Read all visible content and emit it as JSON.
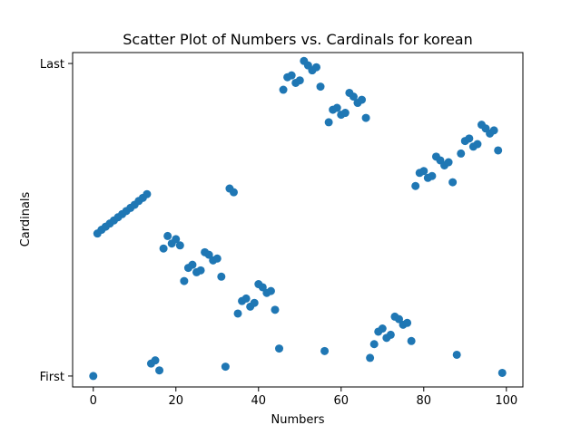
{
  "chart_data": {
    "type": "scatter",
    "title": "Scatter Plot of Numbers vs. Cardinals for korean",
    "xlabel": "Numbers",
    "ylabel": "Cardinals",
    "xlim": [
      -5,
      104
    ],
    "ylim": [
      -0.035,
      1.035
    ],
    "x_ticks": [
      0,
      20,
      40,
      60,
      80,
      100
    ],
    "y_ticks": [
      {
        "value": 0,
        "label": "First"
      },
      {
        "value": 1,
        "label": "Last"
      }
    ],
    "grid": false,
    "legend": "none",
    "marker_color": "#1f77b4",
    "series": [
      {
        "x": [
          0,
          1,
          2,
          3,
          4,
          5,
          6,
          7,
          8,
          9,
          10,
          11,
          12,
          13,
          14,
          15,
          16,
          17,
          18,
          19,
          20,
          21,
          22,
          23,
          24,
          25,
          26,
          27,
          28,
          29,
          30,
          31,
          32,
          33,
          34,
          35,
          36,
          37,
          38,
          39,
          40,
          41,
          42,
          43,
          44,
          45,
          46,
          47,
          48,
          49,
          50,
          51,
          52,
          53,
          54,
          55,
          56,
          57,
          58,
          59,
          60,
          61,
          62,
          63,
          64,
          65,
          66,
          67,
          68,
          69,
          70,
          71,
          72,
          73,
          74,
          75,
          76,
          77,
          78,
          79,
          80,
          81,
          82,
          83,
          84,
          85,
          86,
          87,
          88,
          89,
          90,
          91,
          92,
          93,
          94,
          95,
          96,
          97,
          98,
          99
        ],
        "y": [
          0.0,
          0.456,
          0.468,
          0.478,
          0.488,
          0.498,
          0.508,
          0.518,
          0.528,
          0.538,
          0.548,
          0.56,
          0.57,
          0.582,
          0.04,
          0.05,
          0.018,
          0.408,
          0.448,
          0.424,
          0.438,
          0.418,
          0.304,
          0.346,
          0.356,
          0.332,
          0.338,
          0.396,
          0.388,
          0.37,
          0.376,
          0.318,
          0.03,
          0.6,
          0.588,
          0.2,
          0.24,
          0.248,
          0.222,
          0.234,
          0.294,
          0.284,
          0.266,
          0.272,
          0.212,
          0.088,
          0.916,
          0.956,
          0.962,
          0.938,
          0.946,
          1.008,
          0.994,
          0.978,
          0.988,
          0.926,
          0.08,
          0.812,
          0.852,
          0.858,
          0.836,
          0.842,
          0.906,
          0.894,
          0.874,
          0.884,
          0.826,
          0.058,
          0.102,
          0.142,
          0.152,
          0.122,
          0.132,
          0.19,
          0.182,
          0.164,
          0.17,
          0.112,
          0.608,
          0.65,
          0.656,
          0.634,
          0.64,
          0.702,
          0.69,
          0.674,
          0.684,
          0.62,
          0.068,
          0.712,
          0.752,
          0.76,
          0.734,
          0.742,
          0.804,
          0.792,
          0.776,
          0.786,
          0.722,
          0.01
        ]
      }
    ]
  }
}
